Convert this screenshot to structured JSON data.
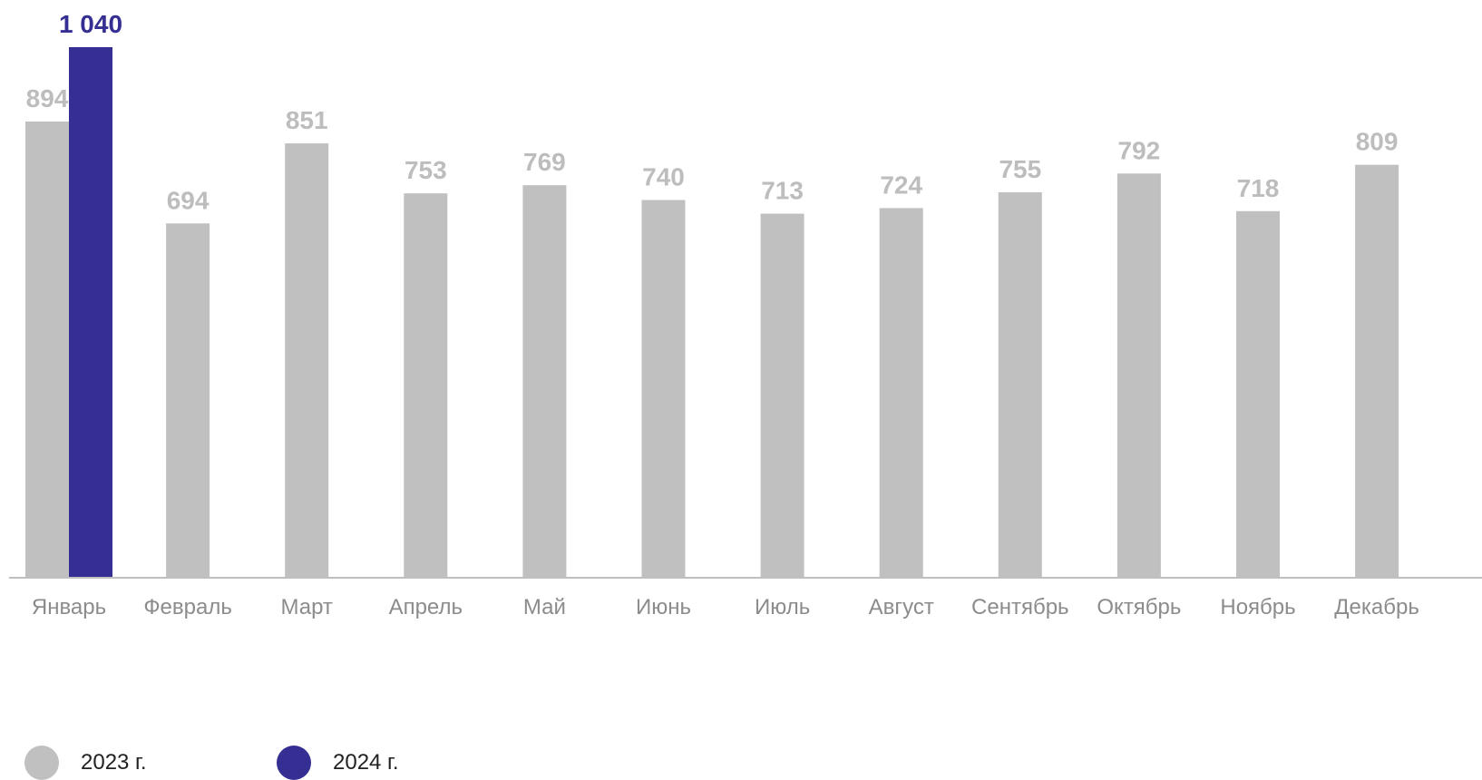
{
  "chart_data": {
    "type": "bar",
    "categories": [
      "Январь",
      "Февраль",
      "Март",
      "Апрель",
      "Май",
      "Июнь",
      "Июль",
      "Август",
      "Сентябрь",
      "Октябрь",
      "Ноябрь",
      "Декабрь"
    ],
    "series": [
      {
        "name": "2023 г.",
        "color": "#c0c0c0",
        "values": [
          894,
          694,
          851,
          753,
          769,
          740,
          713,
          724,
          755,
          792,
          718,
          809
        ],
        "labels": [
          "894",
          "694",
          "851",
          "753",
          "769",
          "740",
          "713",
          "724",
          "755",
          "792",
          "718",
          "809"
        ]
      },
      {
        "name": "2024 г.",
        "color": "#352f93",
        "values": [
          1040,
          null,
          null,
          null,
          null,
          null,
          null,
          null,
          null,
          null,
          null,
          null
        ],
        "labels": [
          "1 040",
          null,
          null,
          null,
          null,
          null,
          null,
          null,
          null,
          null,
          null,
          null
        ]
      }
    ],
    "ylim": [
      0,
      1040
    ],
    "grid": false,
    "legend_position": "bottom-left",
    "axis_color": "#bfbfbf",
    "category_label_color": "#8c8c8c"
  },
  "legend": {
    "items": [
      {
        "label": "2023 г.",
        "color": "#c0c0c0"
      },
      {
        "label": "2024 г.",
        "color": "#352f93"
      }
    ]
  }
}
